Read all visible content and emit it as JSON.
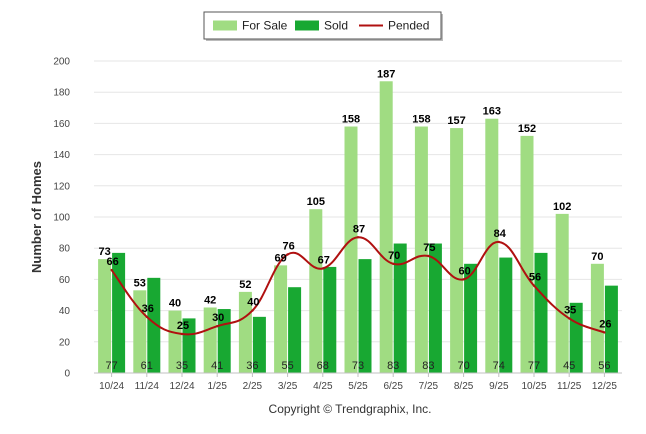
{
  "chart_data": {
    "type": "bar",
    "ylabel": "Number of Homes",
    "xlabel": "",
    "ylim": [
      0,
      200
    ],
    "yticks": [
      0,
      20,
      40,
      60,
      80,
      100,
      120,
      140,
      160,
      180,
      200
    ],
    "categories": [
      "10/24",
      "11/24",
      "12/24",
      "1/25",
      "2/25",
      "3/25",
      "4/25",
      "5/25",
      "6/25",
      "7/25",
      "8/25",
      "9/25",
      "10/25",
      "11/25",
      "12/25"
    ],
    "series": [
      {
        "name": "For Sale",
        "kind": "bar",
        "color": "#a0dc82",
        "values": [
          73,
          53,
          40,
          42,
          52,
          69,
          105,
          158,
          187,
          158,
          157,
          163,
          152,
          102,
          70
        ]
      },
      {
        "name": "Sold",
        "kind": "bar",
        "color": "#18a832",
        "values": [
          77,
          61,
          35,
          41,
          36,
          55,
          68,
          73,
          83,
          83,
          70,
          74,
          77,
          45,
          56
        ]
      },
      {
        "name": "Pended",
        "kind": "line",
        "color": "#b01010",
        "values": [
          66,
          36,
          25,
          30,
          40,
          76,
          67,
          87,
          70,
          75,
          60,
          84,
          56,
          35,
          26
        ]
      }
    ],
    "legend_position": "top-center",
    "grid": true,
    "copyright": "Copyright © Trendgraphix, Inc."
  }
}
